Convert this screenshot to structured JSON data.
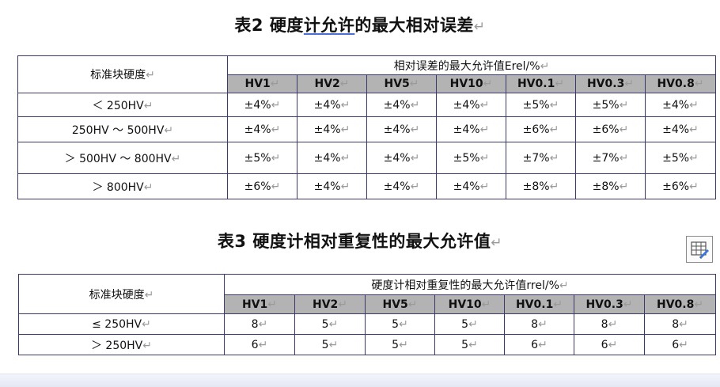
{
  "mark": "↵",
  "table2": {
    "title_prefix": "表2 硬度",
    "title_underlined": "计允许",
    "title_suffix": "的最大相对误差",
    "row_header": "标准块硬度",
    "group_header": "相对误差的最大允许值Erel/%",
    "columns": [
      "HV1",
      "HV2",
      "HV5",
      "HV10",
      "HV0.1",
      "HV0.3",
      "HV0.8"
    ],
    "rows": [
      {
        "label": "＜ 250HV",
        "values": [
          "±4%",
          "±4%",
          "±4%",
          "±4%",
          "±5%",
          "±5%",
          "±4%"
        ]
      },
      {
        "label": "250HV ～ 500HV",
        "values": [
          "±4%",
          "±4%",
          "±4%",
          "±4%",
          "±6%",
          "±6%",
          "±4%"
        ]
      },
      {
        "label": "＞ 500HV ～ 800HV",
        "values": [
          "±5%",
          "±4%",
          "±4%",
          "±5%",
          "±7%",
          "±7%",
          "±5%"
        ]
      },
      {
        "label": "＞ 800HV",
        "values": [
          "±6%",
          "±4%",
          "±4%",
          "±4%",
          "±8%",
          "±8%",
          "±6%"
        ]
      }
    ]
  },
  "table3": {
    "title": "表3 硬度计相对重复性的最大允许值",
    "row_header": "标准块硬度",
    "group_header": "硬度计相对重复性的最大允许值rrel/%",
    "columns": [
      "HV1",
      "HV2",
      "HV5",
      "HV10",
      "HV0.1",
      "HV0.3",
      "HV0.8"
    ],
    "rows": [
      {
        "label": "≤ 250HV",
        "values": [
          "8",
          "5",
          "5",
          "5",
          "8",
          "8",
          "8"
        ]
      },
      {
        "label": "＞ 250HV",
        "values": [
          "6",
          "5",
          "5",
          "5",
          "6",
          "6",
          "6"
        ]
      }
    ]
  },
  "icons": {
    "table_layout": "table-layout-icon"
  }
}
